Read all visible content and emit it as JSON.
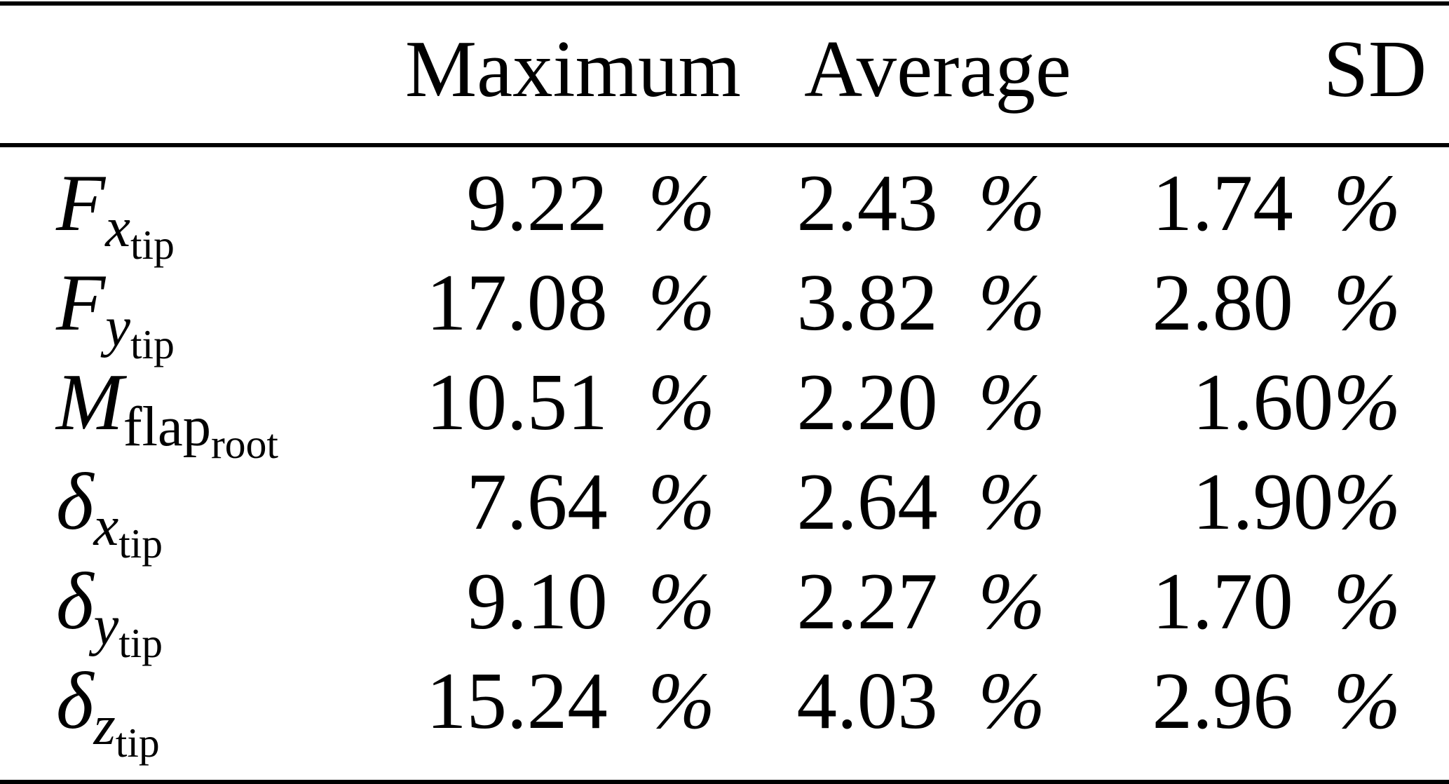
{
  "table": {
    "columns": [
      "Maximum",
      "Average",
      "SD"
    ],
    "rows": [
      {
        "label": {
          "base": "F",
          "sub": "x",
          "subsub": "tip"
        },
        "cells": [
          {
            "value": "9.22",
            "sep": " ",
            "unit": "%"
          },
          {
            "value": "2.43",
            "sep": " ",
            "unit": "%"
          },
          {
            "value": "1.74",
            "sep": " ",
            "unit": "%"
          }
        ]
      },
      {
        "label": {
          "base": "F",
          "sub": "y",
          "subsub": "tip"
        },
        "cells": [
          {
            "value": "17.08",
            "sep": " ",
            "unit": "%"
          },
          {
            "value": "3.82",
            "sep": " ",
            "unit": "%"
          },
          {
            "value": "2.80",
            "sep": " ",
            "unit": "%"
          }
        ]
      },
      {
        "label": {
          "base": "M",
          "sub": "flap",
          "subsub": "root"
        },
        "cells": [
          {
            "value": "10.51",
            "sep": " ",
            "unit": "%"
          },
          {
            "value": "2.20",
            "sep": " ",
            "unit": "%"
          },
          {
            "value": "1.60",
            "sep": "",
            "unit": "%"
          }
        ]
      },
      {
        "label": {
          "base": "δ",
          "sub": "x",
          "subsub": "tip"
        },
        "cells": [
          {
            "value": "7.64",
            "sep": " ",
            "unit": "%"
          },
          {
            "value": "2.64",
            "sep": " ",
            "unit": "%"
          },
          {
            "value": "1.90",
            "sep": "",
            "unit": "%"
          }
        ]
      },
      {
        "label": {
          "base": "δ",
          "sub": "y",
          "subsub": "tip"
        },
        "cells": [
          {
            "value": "9.10",
            "sep": " ",
            "unit": "%"
          },
          {
            "value": "2.27",
            "sep": " ",
            "unit": "%"
          },
          {
            "value": "1.70",
            "sep": " ",
            "unit": "%"
          }
        ]
      },
      {
        "label": {
          "base": "δ",
          "sub": "z",
          "subsub": "tip"
        },
        "cells": [
          {
            "value": "15.24",
            "sep": " ",
            "unit": "%"
          },
          {
            "value": "4.03",
            "sep": " ",
            "unit": "%"
          },
          {
            "value": "2.96",
            "sep": " ",
            "unit": "%"
          }
        ]
      }
    ]
  }
}
